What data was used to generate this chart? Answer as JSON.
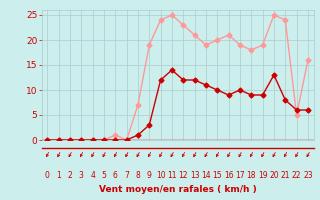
{
  "x_labels": [
    "0",
    "1",
    "2",
    "3",
    "4",
    "5",
    "6",
    "7",
    "8",
    "9",
    "10",
    "11",
    "12",
    "13",
    "14",
    "15",
    "16",
    "17",
    "18",
    "19",
    "20",
    "21",
    "22",
    "23"
  ],
  "x_values": [
    0,
    1,
    2,
    3,
    4,
    5,
    6,
    7,
    8,
    9,
    10,
    11,
    12,
    13,
    14,
    15,
    16,
    17,
    18,
    19,
    20,
    21,
    22,
    23
  ],
  "wind_mean": [
    0,
    0,
    0,
    0,
    0,
    0,
    0,
    0,
    1,
    3,
    12,
    14,
    12,
    12,
    11,
    10,
    9,
    10,
    9,
    9,
    13,
    8,
    6,
    6
  ],
  "wind_gust": [
    0,
    0,
    0,
    0,
    0,
    0,
    1,
    0,
    7,
    19,
    24,
    25,
    23,
    21,
    19,
    20,
    21,
    19,
    18,
    19,
    25,
    24,
    5,
    16
  ],
  "bg_color": "#cceeed",
  "grid_color": "#aacccc",
  "line_mean_color": "#cc0000",
  "line_gust_color": "#ff9999",
  "tick_color": "#cc0000",
  "xlabel": "Vent moyen/en rafales ( km/h )",
  "ylim": [
    0,
    26
  ],
  "yticks": [
    0,
    5,
    10,
    15,
    20,
    25
  ],
  "marker_size": 2.5,
  "line_width": 1.0
}
